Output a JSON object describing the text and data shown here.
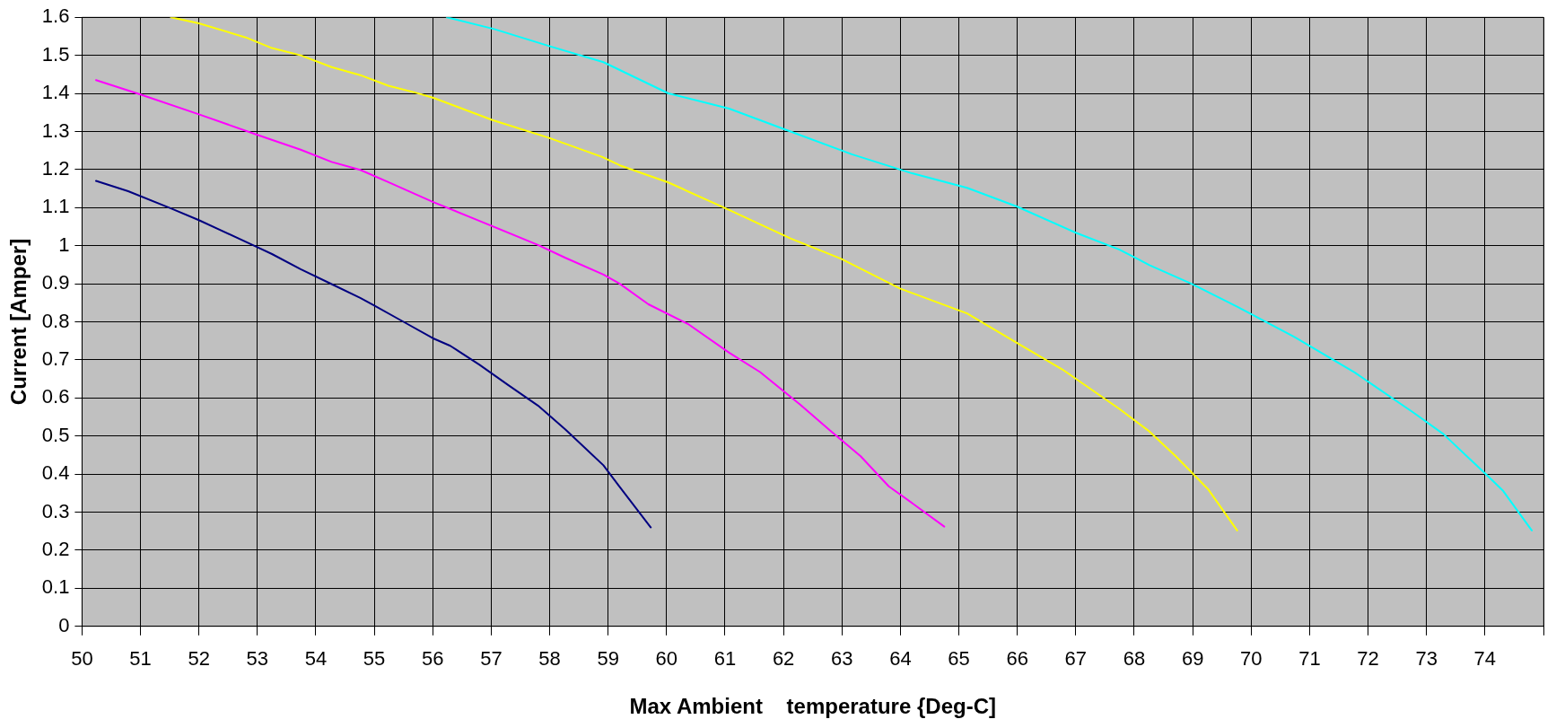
{
  "chart_data": {
    "type": "line",
    "xlabel": "Max Ambient    temperature {Deg-C]",
    "ylabel": "Current [Amper]",
    "xlim": [
      50,
      75
    ],
    "ylim": [
      0,
      1.6
    ],
    "xticks": [
      50,
      51,
      52,
      53,
      54,
      55,
      56,
      57,
      58,
      59,
      60,
      61,
      62,
      63,
      64,
      65,
      66,
      67,
      68,
      69,
      70,
      71,
      72,
      73,
      74,
      {
        "value": 75,
        "label": null
      }
    ],
    "yticks": [
      0,
      0.1,
      0.2,
      0.3,
      0.4,
      0.5,
      0.6,
      0.7,
      0.8,
      0.9,
      1,
      1.1,
      1.2,
      1.3,
      1.4,
      1.5,
      1.6
    ],
    "grid": true,
    "marker": "none",
    "line_style": "solid",
    "series": [
      {
        "color": "#000080",
        "x": [
          50.24,
          50.79,
          51.52,
          52,
          53,
          53.25,
          53.74,
          54.27,
          54.76,
          55,
          55.5,
          56,
          56.3,
          56.8,
          57.3,
          57.8,
          58.27,
          58.92,
          59.18,
          59.73
        ],
        "values": [
          1.17,
          1.143,
          1.098,
          1.067,
          0.996,
          0.978,
          0.938,
          0.899,
          0.863,
          0.843,
          0.8,
          0.757,
          0.737,
          0.687,
          0.633,
          0.58,
          0.517,
          0.423,
          0.37,
          0.26
        ]
      },
      {
        "color": "#ff00ff",
        "x": [
          50.24,
          51,
          52,
          53,
          53.74,
          54.27,
          54.76,
          55.24,
          56,
          56.8,
          57.8,
          58.27,
          58.92,
          59.2,
          59.69,
          60.38,
          61.07,
          61.6,
          62.29,
          62.8,
          63.32,
          63.8,
          64.28,
          64.75
        ],
        "values": [
          1.435,
          1.397,
          1.345,
          1.291,
          1.252,
          1.22,
          1.199,
          1.167,
          1.115,
          1.065,
          1.002,
          0.968,
          0.924,
          0.9,
          0.846,
          0.793,
          0.719,
          0.668,
          0.582,
          0.514,
          0.447,
          0.368,
          0.315,
          0.262
        ]
      },
      {
        "color": "#ffff00",
        "x": [
          51.52,
          52,
          52.8,
          53.25,
          53.74,
          54.27,
          54.76,
          55.24,
          55.73,
          56,
          57.02,
          57.99,
          58.9,
          59.2,
          60.03,
          61.07,
          62.12,
          62.98,
          64,
          65.14,
          65.99,
          66.77,
          67.74,
          68.26,
          68.71,
          69.26,
          69.76
        ],
        "values": [
          1.6,
          1.584,
          1.547,
          1.519,
          1.5,
          1.469,
          1.448,
          1.42,
          1.401,
          1.389,
          1.33,
          1.283,
          1.233,
          1.211,
          1.166,
          1.094,
          1.019,
          0.966,
          0.887,
          0.822,
          0.745,
          0.675,
          0.572,
          0.512,
          0.447,
          0.361,
          0.252
        ]
      },
      {
        "color": "#00ffff",
        "x": [
          56.24,
          57.05,
          58.02,
          58.92,
          60.03,
          61.07,
          62.12,
          63.17,
          64.2,
          65.14,
          65.99,
          67,
          67.74,
          68.26,
          68.98,
          69.76,
          70.74,
          71.77,
          72.79,
          73.29,
          74.02,
          74.31,
          74.8
        ],
        "values": [
          1.6,
          1.569,
          1.523,
          1.482,
          1.4,
          1.36,
          1.3,
          1.24,
          1.19,
          1.152,
          1.103,
          1.034,
          0.99,
          0.949,
          0.9,
          0.84,
          0.76,
          0.667,
          0.56,
          0.505,
          0.399,
          0.356,
          0.252
        ]
      }
    ]
  }
}
